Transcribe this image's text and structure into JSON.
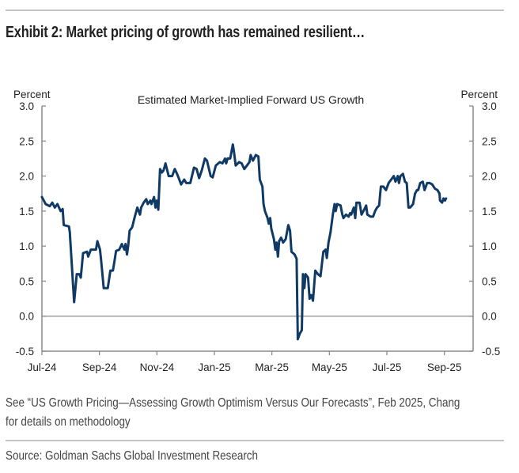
{
  "header": {
    "title": "Exhibit 2: Market pricing of growth has remained resilient…"
  },
  "footnote": {
    "line1": "See “US Growth Pricing—Assessing Growth Optimism Versus Our Forecasts”, Feb 2025, Chang",
    "line2": "for details on methodology"
  },
  "source": "Source: Goldman Sachs Global Investment Research",
  "chart_data": {
    "type": "line",
    "title": "Estimated Market-Implied Forward US Growth",
    "ylabel_left": "Percent",
    "ylabel_right": "Percent",
    "ylim": [
      -0.5,
      3.0
    ],
    "yticks": [
      "3.0",
      "2.5",
      "2.0",
      "1.5",
      "1.0",
      "0.5",
      "0.0",
      "-0.5"
    ],
    "ytick_values": [
      3.0,
      2.5,
      2.0,
      1.5,
      1.0,
      0.5,
      0.0,
      -0.5
    ],
    "x_unit": "months since Jul-24",
    "xlim": [
      0,
      15
    ],
    "xticks": [
      "Jul-24",
      "Sep-24",
      "Nov-24",
      "Jan-25",
      "Mar-25",
      "May-25",
      "Jul-25",
      "Sep-25"
    ],
    "xtick_values": [
      0,
      2,
      4,
      6,
      8,
      10,
      12,
      14
    ],
    "line_color": "#0f3a66",
    "series": [
      {
        "name": "Estimated Market-Implied Forward US Growth",
        "points": [
          [
            0,
            1.7
          ],
          [
            0.13,
            1.6
          ],
          [
            0.27,
            1.57
          ],
          [
            0.36,
            1.62
          ],
          [
            0.45,
            1.55
          ],
          [
            0.54,
            1.6
          ],
          [
            0.65,
            1.5
          ],
          [
            0.72,
            1.53
          ],
          [
            0.76,
            1.3
          ],
          [
            0.94,
            1.28
          ],
          [
            0.97,
            1.2
          ],
          [
            1.12,
            0.2
          ],
          [
            1.21,
            0.6
          ],
          [
            1.3,
            0.6
          ],
          [
            1.35,
            0.55
          ],
          [
            1.43,
            0.9
          ],
          [
            1.57,
            0.92
          ],
          [
            1.61,
            0.85
          ],
          [
            1.7,
            0.95
          ],
          [
            1.88,
            0.95
          ],
          [
            1.93,
            1.07
          ],
          [
            2.02,
            0.95
          ],
          [
            2.06,
            0.8
          ],
          [
            2.15,
            0.4
          ],
          [
            2.29,
            0.4
          ],
          [
            2.38,
            0.65
          ],
          [
            2.47,
            0.65
          ],
          [
            2.51,
            0.75
          ],
          [
            2.58,
            0.93
          ],
          [
            2.69,
            0.95
          ],
          [
            2.78,
            1.03
          ],
          [
            2.87,
            0.95
          ],
          [
            2.91,
            1.03
          ],
          [
            2.96,
            0.88
          ],
          [
            3.0,
            1.0
          ],
          [
            3.05,
            1.22
          ],
          [
            3.14,
            1.27
          ],
          [
            3.23,
            1.42
          ],
          [
            3.32,
            1.55
          ],
          [
            3.41,
            1.45
          ],
          [
            3.45,
            1.55
          ],
          [
            3.54,
            1.62
          ],
          [
            3.63,
            1.67
          ],
          [
            3.68,
            1.6
          ],
          [
            3.77,
            1.65
          ],
          [
            3.81,
            1.6
          ],
          [
            3.9,
            1.7
          ],
          [
            3.95,
            1.55
          ],
          [
            3.99,
            1.65
          ],
          [
            4.05,
            1.52
          ],
          [
            4.11,
            2.1
          ],
          [
            4.17,
            2.05
          ],
          [
            4.23,
            2.08
          ],
          [
            4.3,
            2.18
          ],
          [
            4.35,
            2.1
          ],
          [
            4.41,
            2.0
          ],
          [
            4.53,
            2.0
          ],
          [
            4.62,
            2.1
          ],
          [
            4.68,
            2.05
          ],
          [
            4.75,
            1.98
          ],
          [
            4.84,
            1.88
          ],
          [
            4.95,
            1.95
          ],
          [
            5.02,
            1.9
          ],
          [
            5.16,
            1.9
          ],
          [
            5.29,
            2.12
          ],
          [
            5.38,
            2.1
          ],
          [
            5.47,
            1.97
          ],
          [
            5.56,
            2.08
          ],
          [
            5.67,
            2.25
          ],
          [
            5.74,
            2.22
          ],
          [
            5.87,
            2.0
          ],
          [
            5.94,
            1.98
          ],
          [
            6.05,
            2.15
          ],
          [
            6.19,
            2.2
          ],
          [
            6.28,
            2.18
          ],
          [
            6.37,
            2.25
          ],
          [
            6.41,
            2.18
          ],
          [
            6.46,
            2.25
          ],
          [
            6.55,
            2.25
          ],
          [
            6.64,
            2.45
          ],
          [
            6.68,
            2.35
          ],
          [
            6.74,
            2.15
          ],
          [
            6.86,
            2.2
          ],
          [
            6.95,
            2.18
          ],
          [
            7.04,
            2.1
          ],
          [
            7.13,
            2.15
          ],
          [
            7.22,
            2.2
          ],
          [
            7.26,
            2.3
          ],
          [
            7.34,
            2.22
          ],
          [
            7.44,
            2.3
          ],
          [
            7.53,
            2.28
          ],
          [
            7.58,
            1.95
          ],
          [
            7.67,
            1.85
          ],
          [
            7.71,
            1.6
          ],
          [
            7.76,
            1.5
          ],
          [
            7.85,
            1.4
          ],
          [
            7.89,
            1.32
          ],
          [
            7.94,
            1.4
          ],
          [
            7.98,
            1.25
          ],
          [
            8.07,
            1.1
          ],
          [
            8.12,
            0.95
          ],
          [
            8.16,
            1.05
          ],
          [
            8.21,
            0.85
          ],
          [
            8.25,
            1.07
          ],
          [
            8.32,
            1.12
          ],
          [
            8.39,
            1.05
          ],
          [
            8.48,
            1.1
          ],
          [
            8.57,
            1.3
          ],
          [
            8.63,
            1.22
          ],
          [
            8.68,
            0.92
          ],
          [
            8.79,
            0.88
          ],
          [
            8.86,
            0.82
          ],
          [
            8.9,
            -0.33
          ],
          [
            8.97,
            -0.25
          ],
          [
            9.04,
            -0.2
          ],
          [
            9.08,
            0.6
          ],
          [
            9.13,
            0.4
          ],
          [
            9.17,
            0.6
          ],
          [
            9.26,
            0.55
          ],
          [
            9.31,
            0.25
          ],
          [
            9.37,
            0.3
          ],
          [
            9.43,
            0.22
          ],
          [
            9.51,
            0.65
          ],
          [
            9.6,
            0.6
          ],
          [
            9.69,
            0.57
          ],
          [
            9.79,
            0.92
          ],
          [
            9.87,
            0.95
          ],
          [
            9.91,
            0.83
          ],
          [
            9.97,
            1.05
          ],
          [
            10.04,
            1.2
          ],
          [
            10.12,
            1.45
          ],
          [
            10.18,
            1.6
          ],
          [
            10.22,
            1.5
          ],
          [
            10.27,
            1.6
          ],
          [
            10.39,
            1.58
          ],
          [
            10.45,
            1.45
          ],
          [
            10.49,
            1.4
          ],
          [
            10.58,
            1.45
          ],
          [
            10.67,
            1.42
          ],
          [
            10.72,
            1.47
          ],
          [
            10.76,
            1.45
          ],
          [
            10.85,
            1.55
          ],
          [
            10.9,
            1.4
          ],
          [
            10.94,
            1.62
          ],
          [
            11.05,
            1.62
          ],
          [
            11.12,
            1.45
          ],
          [
            11.21,
            1.52
          ],
          [
            11.28,
            1.58
          ],
          [
            11.32,
            1.45
          ],
          [
            11.43,
            1.42
          ],
          [
            11.52,
            1.42
          ],
          [
            11.59,
            1.5
          ],
          [
            11.66,
            1.55
          ],
          [
            11.73,
            1.58
          ],
          [
            11.79,
            1.85
          ],
          [
            11.88,
            1.85
          ],
          [
            11.97,
            1.8
          ],
          [
            12.06,
            1.9
          ],
          [
            12.15,
            1.95
          ],
          [
            12.24,
            2.0
          ],
          [
            12.3,
            1.92
          ],
          [
            12.38,
            2.0
          ],
          [
            12.42,
            1.9
          ],
          [
            12.47,
            2.0
          ],
          [
            12.56,
            2.03
          ],
          [
            12.63,
            1.92
          ],
          [
            12.69,
            1.9
          ],
          [
            12.75,
            1.55
          ],
          [
            12.81,
            1.55
          ],
          [
            12.91,
            1.6
          ],
          [
            12.98,
            1.75
          ],
          [
            13.05,
            1.8
          ],
          [
            13.09,
            1.8
          ],
          [
            13.16,
            1.9
          ],
          [
            13.25,
            1.92
          ],
          [
            13.31,
            1.8
          ],
          [
            13.4,
            1.9
          ],
          [
            13.49,
            1.9
          ],
          [
            13.58,
            1.88
          ],
          [
            13.67,
            1.82
          ],
          [
            13.76,
            1.8
          ],
          [
            13.83,
            1.75
          ],
          [
            13.85,
            1.65
          ],
          [
            13.92,
            1.62
          ],
          [
            13.97,
            1.68
          ],
          [
            14.02,
            1.65
          ],
          [
            14.06,
            1.68
          ]
        ]
      }
    ]
  }
}
